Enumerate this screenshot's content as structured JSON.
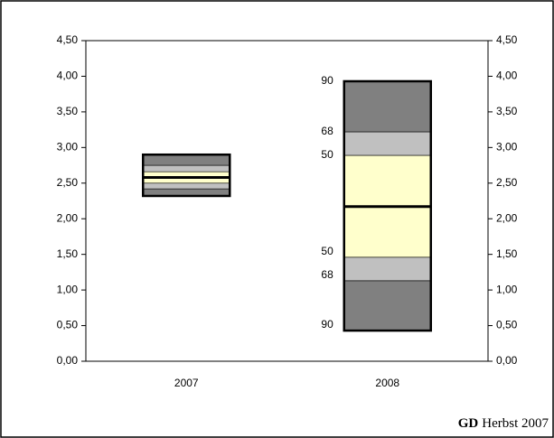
{
  "chart_data": {
    "type": "fan",
    "categories": [
      "2007",
      "2008"
    ],
    "boundaries": [
      {
        "name": "90",
        "values": [
          2.32,
          0.43
        ]
      },
      {
        "name": "68",
        "values": [
          2.42,
          1.13
        ]
      },
      {
        "name": "50",
        "values": [
          2.5,
          1.46
        ]
      },
      {
        "values": [
          2.58,
          2.17
        ]
      },
      {
        "name": "50",
        "values": [
          2.66,
          2.89
        ]
      },
      {
        "name": "68",
        "values": [
          2.75,
          3.22
        ]
      },
      {
        "name": "90",
        "values": [
          2.9,
          3.93
        ]
      }
    ],
    "band_colors": [
      "#808080",
      "#c0c0c0",
      "#ffffcc",
      "#ffffcc",
      "#c0c0c0",
      "#808080"
    ],
    "median_color": "#000000",
    "ylim": [
      0,
      4.5
    ],
    "yticks": [
      {
        "value": 0,
        "label": "0,00"
      },
      {
        "value": 0.5,
        "label": "0,50"
      },
      {
        "value": 1,
        "label": "1,00"
      },
      {
        "value": 1.5,
        "label": "1,50"
      },
      {
        "value": 2,
        "label": "2,00"
      },
      {
        "value": 2.5,
        "label": "2,50"
      },
      {
        "value": 3,
        "label": "3,00"
      },
      {
        "value": 3.5,
        "label": "3,50"
      },
      {
        "value": 4,
        "label": "4,00"
      },
      {
        "value": 4.5,
        "label": "4,50"
      }
    ],
    "source": {
      "bold": "GD",
      "text": "Herbst 2007"
    }
  }
}
